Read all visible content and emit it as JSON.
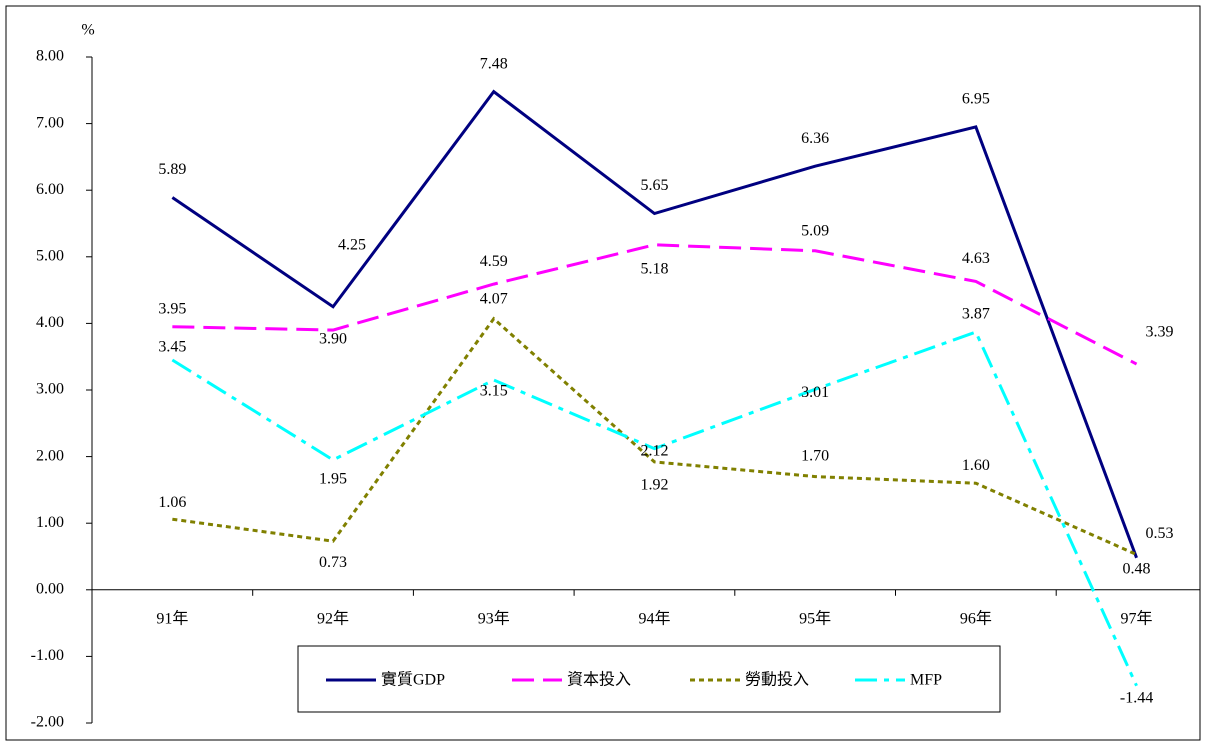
{
  "chart_data": {
    "type": "line",
    "y_label": "%",
    "categories": [
      "91年",
      "92年",
      "93年",
      "94年",
      "95年",
      "96年",
      "97年"
    ],
    "series": [
      {
        "name": "實質GDP",
        "color": "#000080",
        "line_style": "solid",
        "values": [
          5.89,
          4.25,
          7.48,
          5.65,
          6.36,
          6.95,
          0.48
        ],
        "value_labels": [
          "5.89",
          "4.25",
          "7.48",
          "5.65",
          "6.36",
          "6.95",
          "0.48"
        ]
      },
      {
        "name": "資本投入",
        "color": "#ff00ff",
        "line_style": "dashed",
        "values": [
          3.95,
          3.9,
          4.59,
          5.18,
          5.09,
          4.63,
          3.39
        ],
        "value_labels": [
          "3.95",
          "3.90",
          "4.59",
          "5.18",
          "5.09",
          "4.63",
          "3.39"
        ]
      },
      {
        "name": "勞動投入",
        "color": "#808000",
        "line_style": "dotted",
        "values": [
          1.06,
          0.73,
          4.07,
          1.92,
          1.7,
          1.6,
          0.53
        ],
        "value_labels": [
          "1.06",
          "0.73",
          "4.07",
          "1.92",
          "1.70",
          "1.60",
          "0.53"
        ]
      },
      {
        "name": "MFP",
        "color": "#00ffff",
        "line_style": "dashdot",
        "values": [
          3.45,
          1.95,
          3.15,
          2.12,
          3.01,
          3.87,
          -1.44
        ],
        "value_labels": [
          "3.45",
          "1.95",
          "3.15",
          "2.12",
          "3.01",
          "3.87",
          "-1.44"
        ]
      }
    ],
    "ylim": [
      -2,
      8
    ],
    "yticks": [
      {
        "value": -2,
        "label": "-2.00"
      },
      {
        "value": -1,
        "label": "-1.00"
      },
      {
        "value": 0,
        "label": "0.00"
      },
      {
        "value": 1,
        "label": "1.00"
      },
      {
        "value": 2,
        "label": "2.00"
      },
      {
        "value": 3,
        "label": "3.00"
      },
      {
        "value": 4,
        "label": "4.00"
      },
      {
        "value": 5,
        "label": "5.00"
      },
      {
        "value": 6,
        "label": "6.00"
      },
      {
        "value": 7,
        "label": "7.00"
      },
      {
        "value": 8,
        "label": "8.00"
      }
    ],
    "grid": false,
    "legend": "bottom"
  }
}
